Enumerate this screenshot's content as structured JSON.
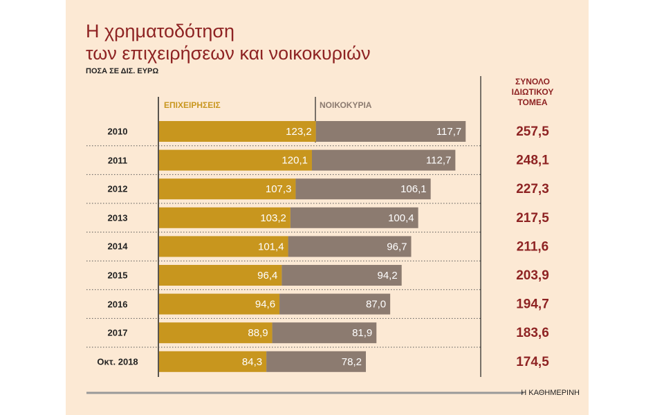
{
  "chart_data": {
    "type": "stacked-bar",
    "title": [
      "Η χρηματοδότηση",
      "των επιχειρήσεων και νοικοκυριών"
    ],
    "subtitle": "ΠΟΣΑ ΣΕ ΔΙΣ. ΕΥΡΩ",
    "source": "Η ΚΑΘΗΜΕΡΙΝΗ",
    "categories": [
      "2010",
      "2011",
      "2012",
      "2013",
      "2014",
      "2015",
      "2016",
      "2017",
      "Οκτ. 2018"
    ],
    "series": [
      {
        "name": "ΕΠΙΧΕΙΡΗΣΕΙΣ",
        "color": "#c8961e",
        "values": [
          123.2,
          120.1,
          107.3,
          103.2,
          101.4,
          96.4,
          94.6,
          88.9,
          84.3
        ],
        "value_labels": [
          "123,2",
          "120,1",
          "107,3",
          "103,2",
          "101,4",
          "96,4",
          "94,6",
          "88,9",
          "84,3"
        ]
      },
      {
        "name": "ΝΟΙΚΟΚΥΡΙΑ",
        "color": "#8c7b70",
        "values": [
          117.7,
          112.7,
          106.1,
          100.4,
          96.7,
          94.2,
          87.0,
          81.9,
          78.2
        ],
        "value_labels": [
          "117,7",
          "112,7",
          "106,1",
          "100,4",
          "96,7",
          "94,2",
          "87,0",
          "81,9",
          "78,2"
        ]
      }
    ],
    "totals": {
      "name": "ΣΥΝΟΛΟ ΙΔΙΩΤΙΚΟΥ ΤΟΜΕΑ",
      "values": [
        257.5,
        248.1,
        227.3,
        217.5,
        211.6,
        203.9,
        194.7,
        183.6,
        174.5
      ],
      "value_labels": [
        "257,5",
        "248,1",
        "227,3",
        "217,5",
        "211,6",
        "203,9",
        "194,7",
        "183,6",
        "174,5"
      ]
    }
  }
}
